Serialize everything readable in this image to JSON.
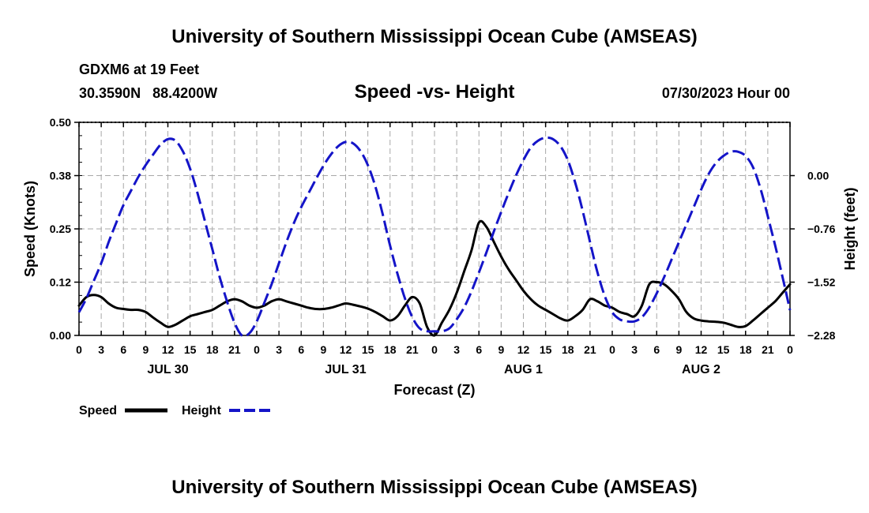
{
  "page": {
    "title": "University of Southern Mississippi Ocean Cube (AMSEAS)",
    "footer_title": "University of Southern Mississippi Ocean Cube (AMSEAS)",
    "station": "GDXM6 at 19 Feet",
    "location": "30.3590N   88.4200W",
    "date": "07/30/2023 Hour 00"
  },
  "chart_data": {
    "type": "line",
    "title": "Speed -vs- Height",
    "xlabel": "Forecast (Z)",
    "ylabel_left": "Speed (Knots)",
    "ylabel_right": "Height (feet)",
    "x_range_hours": [
      0,
      96
    ],
    "x_tick_step_hours": 3,
    "x_tick_labels": [
      "0",
      "3",
      "6",
      "9",
      "12",
      "15",
      "18",
      "21",
      "0",
      "3",
      "6",
      "9",
      "12",
      "15",
      "18",
      "21",
      "0",
      "3",
      "6",
      "9",
      "12",
      "15",
      "18",
      "21",
      "0",
      "3",
      "6",
      "9",
      "12",
      "15",
      "18",
      "21",
      "0"
    ],
    "day_labels": [
      {
        "label": "JUL 30",
        "hour": 12
      },
      {
        "label": "JUL 31",
        "hour": 36
      },
      {
        "label": "AUG 1",
        "hour": 60
      },
      {
        "label": "AUG 2",
        "hour": 84
      }
    ],
    "ylim_left": [
      0,
      0.5
    ],
    "yticks_left": [
      "0.00",
      "0.12",
      "0.25",
      "0.38",
      "0.50"
    ],
    "ylim_right": [
      -2.28,
      0.76
    ],
    "yticks_right": [
      "−2.28",
      "−1.52",
      "−0.76",
      "0.00"
    ],
    "grid": true,
    "legend": [
      {
        "name": "Speed",
        "color": "#000000",
        "style": "solid"
      },
      {
        "name": "Height",
        "color": "#1414c8",
        "style": "dashed"
      }
    ],
    "series": [
      {
        "name": "Speed",
        "axis": "left",
        "x": [
          0,
          1,
          2,
          3,
          4,
          5,
          6,
          7,
          8,
          9,
          10,
          11,
          12,
          13,
          14,
          15,
          16,
          17,
          18,
          19,
          20,
          21,
          22,
          23,
          24,
          25,
          26,
          27,
          28,
          29,
          30,
          31,
          32,
          33,
          34,
          35,
          36,
          37,
          38,
          39,
          40,
          41,
          42,
          43,
          44,
          45,
          46,
          47,
          48,
          49,
          50,
          51,
          52,
          53,
          54,
          55,
          56,
          57,
          58,
          59,
          60,
          61,
          62,
          63,
          64,
          65,
          66,
          67,
          68,
          69,
          70,
          71,
          72,
          73,
          74,
          75,
          76,
          77,
          78,
          79,
          80,
          81,
          82,
          83,
          84,
          85,
          86,
          87,
          88,
          89,
          90,
          91,
          92,
          93,
          94,
          95,
          96
        ],
        "values": [
          0.07,
          0.09,
          0.095,
          0.09,
          0.075,
          0.065,
          0.062,
          0.06,
          0.06,
          0.055,
          0.042,
          0.03,
          0.02,
          0.025,
          0.035,
          0.045,
          0.05,
          0.055,
          0.06,
          0.07,
          0.08,
          0.085,
          0.08,
          0.07,
          0.065,
          0.07,
          0.08,
          0.085,
          0.08,
          0.075,
          0.07,
          0.065,
          0.062,
          0.062,
          0.065,
          0.07,
          0.075,
          0.072,
          0.068,
          0.063,
          0.055,
          0.045,
          0.035,
          0.045,
          0.07,
          0.09,
          0.075,
          0.02,
          0.0,
          0.03,
          0.06,
          0.1,
          0.15,
          0.2,
          0.265,
          0.255,
          0.22,
          0.185,
          0.155,
          0.13,
          0.105,
          0.085,
          0.07,
          0.06,
          0.05,
          0.04,
          0.035,
          0.045,
          0.06,
          0.085,
          0.08,
          0.07,
          0.065,
          0.055,
          0.05,
          0.045,
          0.07,
          0.12,
          0.125,
          0.12,
          0.105,
          0.085,
          0.055,
          0.04,
          0.035,
          0.033,
          0.032,
          0.03,
          0.025,
          0.02,
          0.022,
          0.035,
          0.05,
          0.065,
          0.08,
          0.1,
          0.12
        ]
      },
      {
        "name": "Height",
        "axis": "right",
        "x": [
          0,
          1,
          2,
          3,
          4,
          5,
          6,
          7,
          8,
          9,
          10,
          11,
          12,
          13,
          14,
          15,
          16,
          17,
          18,
          19,
          20,
          21,
          22,
          23,
          24,
          25,
          26,
          27,
          28,
          29,
          30,
          31,
          32,
          33,
          34,
          35,
          36,
          37,
          38,
          39,
          40,
          41,
          42,
          43,
          44,
          45,
          46,
          47,
          48,
          49,
          50,
          51,
          52,
          53,
          54,
          55,
          56,
          57,
          58,
          59,
          60,
          61,
          62,
          63,
          64,
          65,
          66,
          67,
          68,
          69,
          70,
          71,
          72,
          73,
          74,
          75,
          76,
          77,
          78,
          79,
          80,
          81,
          82,
          83,
          84,
          85,
          86,
          87,
          88,
          89,
          90,
          91,
          92,
          93,
          94,
          95,
          96
        ],
        "values": [
          -1.95,
          -1.75,
          -1.5,
          -1.25,
          -0.95,
          -0.68,
          -0.42,
          -0.22,
          -0.02,
          0.15,
          0.3,
          0.44,
          0.52,
          0.5,
          0.35,
          0.1,
          -0.25,
          -0.65,
          -1.05,
          -1.45,
          -1.8,
          -2.1,
          -2.28,
          -2.25,
          -2.08,
          -1.82,
          -1.55,
          -1.25,
          -0.95,
          -0.68,
          -0.45,
          -0.25,
          -0.05,
          0.14,
          0.3,
          0.42,
          0.48,
          0.46,
          0.35,
          0.15,
          -0.15,
          -0.55,
          -1.0,
          -1.4,
          -1.75,
          -2.02,
          -2.18,
          -2.22,
          -2.22,
          -2.22,
          -2.18,
          -2.05,
          -1.88,
          -1.65,
          -1.38,
          -1.1,
          -0.8,
          -0.52,
          -0.25,
          0.0,
          0.22,
          0.4,
          0.5,
          0.54,
          0.52,
          0.42,
          0.22,
          -0.1,
          -0.5,
          -0.95,
          -1.38,
          -1.72,
          -1.95,
          -2.05,
          -2.08,
          -2.08,
          -2.02,
          -1.88,
          -1.68,
          -1.45,
          -1.2,
          -0.95,
          -0.7,
          -0.45,
          -0.2,
          0.02,
          0.18,
          0.28,
          0.34,
          0.34,
          0.28,
          0.12,
          -0.18,
          -0.58,
          -1.0,
          -1.45,
          -1.92
        ]
      }
    ]
  }
}
